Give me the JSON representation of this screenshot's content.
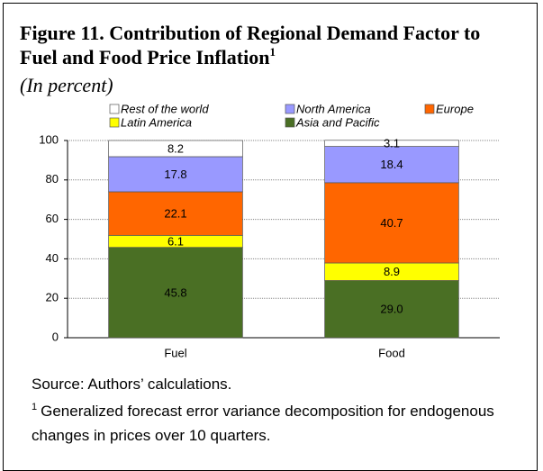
{
  "chart_data": {
    "type": "stacked_bar",
    "title": "Figure 11. Contribution of Regional Demand Factor to Fuel and Food Price Inflation",
    "title_superscript": "1",
    "subtitle": "(In percent)",
    "categories": [
      "Fuel",
      "Food"
    ],
    "series": [
      {
        "name": "Asia and Pacific",
        "color": "#4a6f24",
        "values": [
          45.8,
          29.0
        ],
        "value_labels": [
          "45.8",
          "29.0"
        ]
      },
      {
        "name": "Latin America",
        "color": "#ffff00",
        "values": [
          6.1,
          8.9
        ]
      },
      {
        "name": "Europe",
        "color": "#ff6600",
        "values": [
          22.1,
          40.7
        ]
      },
      {
        "name": "North America",
        "color": "#9999ff",
        "values": [
          17.8,
          18.4
        ]
      },
      {
        "name": "Rest of the world",
        "color": "#ffffff",
        "values": [
          8.2,
          3.1
        ]
      }
    ],
    "ylim": [
      0,
      100
    ],
    "yticks": [
      0,
      20,
      40,
      60,
      80,
      100
    ],
    "grid": true,
    "source": "Source: Authors’ calculations.",
    "footnote": {
      "marker": "1",
      "text": "Generalized forecast error variance decomposition for endogenous changes in prices over 10 quarters."
    }
  }
}
